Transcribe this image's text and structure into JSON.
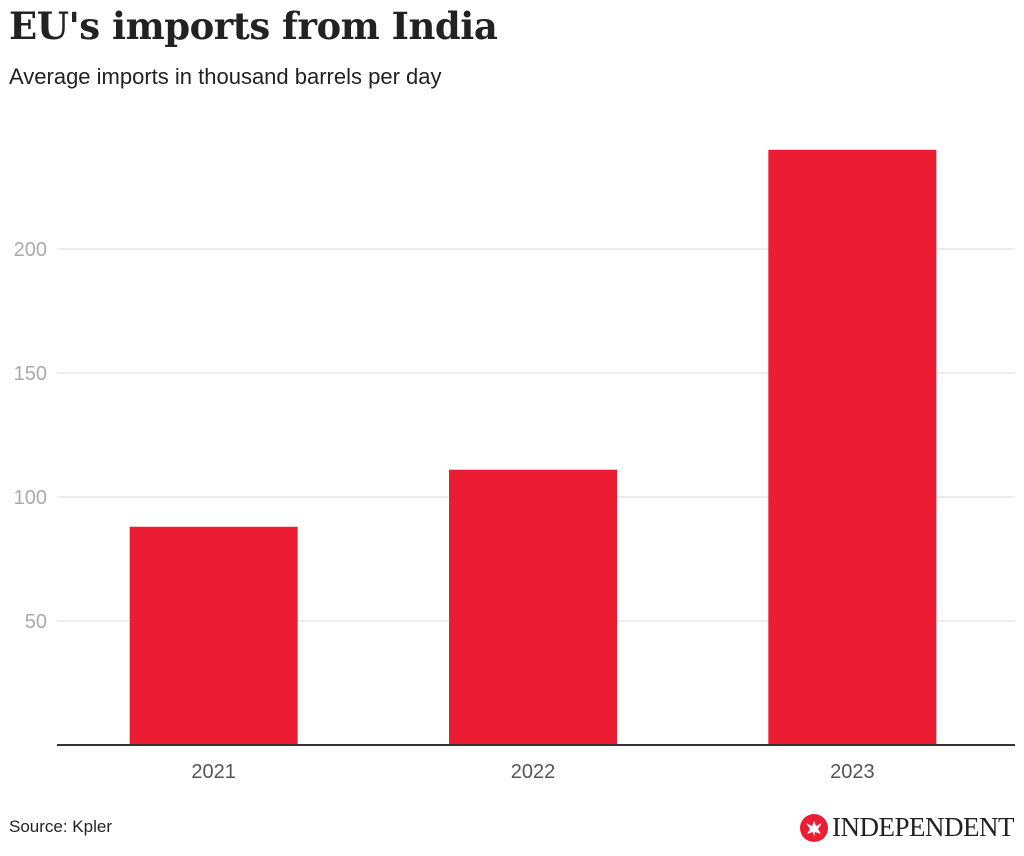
{
  "header": {
    "title": "EU's imports from India",
    "subtitle": "Average imports in thousand barrels per day"
  },
  "footer": {
    "source": "Source: Kpler",
    "brand": "INDEPENDENT",
    "brand_icon": "eagle-logo-icon"
  },
  "colors": {
    "bar": "#ec1c32",
    "grid": "#e6e6e6",
    "axis": "#333333",
    "brand": "#ec1c32"
  },
  "chart_data": {
    "type": "bar",
    "title": "EU's imports from India",
    "subtitle": "Average imports in thousand barrels per day",
    "xlabel": "",
    "ylabel": "",
    "categories": [
      "2021",
      "2022",
      "2023"
    ],
    "values": [
      88,
      111,
      240
    ],
    "ylim": [
      0,
      245
    ],
    "yticks": [
      50,
      100,
      150,
      200
    ],
    "ytick_labels": [
      "50",
      "100",
      "150",
      "200"
    ],
    "grid": true,
    "legend": null,
    "source": "Source: Kpler"
  }
}
